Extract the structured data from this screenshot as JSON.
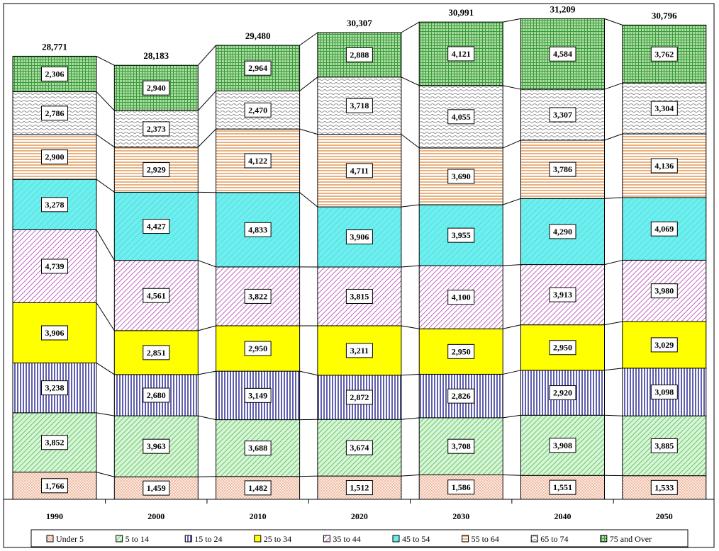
{
  "chart_data": {
    "type": "bar",
    "stacked": true,
    "title": "",
    "xlabel": "",
    "ylabel": "",
    "ylim": [
      0,
      34400
    ],
    "grid": false,
    "legend_position": "bottom",
    "categories": [
      "1990",
      "2000",
      "2010",
      "2020",
      "2030",
      "2040",
      "2050"
    ],
    "totals": [
      28771,
      28183,
      29480,
      30307,
      30991,
      31209,
      30796
    ],
    "total_labels": [
      "28,771",
      "28,183",
      "29,480",
      "30,307",
      "30,991",
      "31,209",
      "30,796"
    ],
    "series": [
      {
        "name": "Under 5",
        "color": "#FFE5D9",
        "pattern": "dots",
        "values": [
          1766,
          1459,
          1482,
          1512,
          1586,
          1551,
          1533
        ],
        "labels": [
          "1,766",
          "1,459",
          "1,482",
          "1,512",
          "1,586",
          "1,551",
          "1,533"
        ]
      },
      {
        "name": "5 to 14",
        "color": "#CCFFCC",
        "pattern": "diagonal",
        "values": [
          3852,
          3963,
          3688,
          3674,
          3708,
          3908,
          3885
        ],
        "labels": [
          "3,852",
          "3,963",
          "3,688",
          "3,674",
          "3,708",
          "3,908",
          "3,885"
        ]
      },
      {
        "name": "15 to 24",
        "color": "#FFFFFF",
        "pattern": "vertical",
        "values": [
          3238,
          2680,
          3149,
          2872,
          2826,
          2920,
          3098
        ],
        "labels": [
          "3,238",
          "2,680",
          "3,149",
          "2,872",
          "2,826",
          "2,920",
          "3,098"
        ]
      },
      {
        "name": "25 to 34",
        "color": "#FFFF00",
        "pattern": "none",
        "values": [
          3906,
          2851,
          2950,
          3211,
          2950,
          2950,
          3029
        ],
        "labels": [
          "3,906",
          "2,851",
          "2,950",
          "3,211",
          "2,950",
          "2,950",
          "3,029"
        ]
      },
      {
        "name": "35 to 44",
        "color": "#FFE6FF",
        "pattern": "diagonal-purple",
        "values": [
          4739,
          4561,
          3822,
          3815,
          4100,
          3913,
          3980
        ],
        "labels": [
          "4,739",
          "4,561",
          "3,822",
          "3,815",
          "4,100",
          "3,913",
          "3,980"
        ]
      },
      {
        "name": "45 to 54",
        "color": "#66F0F0",
        "pattern": "diagonal-cyan",
        "values": [
          3278,
          4427,
          4833,
          3906,
          3955,
          4290,
          4069
        ],
        "labels": [
          "3,278",
          "4,427",
          "4,833",
          "3,906",
          "3,955",
          "4,290",
          "4,069"
        ]
      },
      {
        "name": "55 to 64",
        "color": "#FFF0E0",
        "pattern": "horizontal",
        "values": [
          2900,
          2929,
          4122,
          4711,
          3690,
          3786,
          4136
        ],
        "labels": [
          "2,900",
          "2,929",
          "4,122",
          "4,711",
          "3,690",
          "3,786",
          "4,136"
        ]
      },
      {
        "name": "65 to 74",
        "color": "#F5F5F5",
        "pattern": "wave",
        "values": [
          2786,
          2373,
          2470,
          3718,
          4055,
          3307,
          3304
        ],
        "labels": [
          "2,786",
          "2,373",
          "2,470",
          "3,718",
          "4,055",
          "3,307",
          "3,304"
        ]
      },
      {
        "name": "75 and Over",
        "color": "#B8E0B0",
        "pattern": "grid",
        "values": [
          2306,
          2940,
          2964,
          2888,
          4121,
          4584,
          3762
        ],
        "labels": [
          "2,306",
          "2,940",
          "2,964",
          "2,888",
          "4,121",
          "4,584",
          "3,762"
        ]
      }
    ]
  }
}
